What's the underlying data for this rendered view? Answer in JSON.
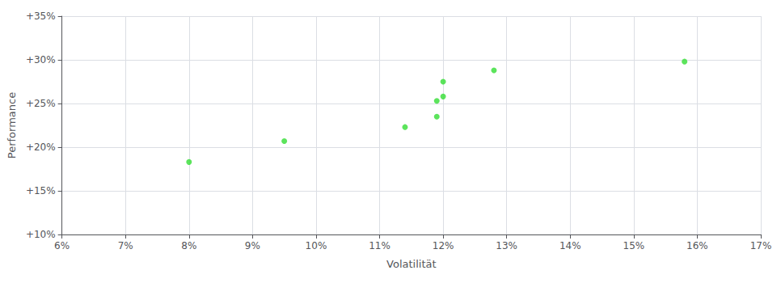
{
  "chart_data": {
    "type": "scatter",
    "xlabel": "Volatilität",
    "ylabel": "Performance",
    "x": [
      0.08,
      0.095,
      0.114,
      0.119,
      0.119,
      0.12,
      0.12,
      0.128,
      0.158
    ],
    "values": [
      0.183,
      0.207,
      0.223,
      0.235,
      0.253,
      0.258,
      0.275,
      0.288,
      0.298
    ],
    "color": "#33dd33",
    "xlim": [
      0.06,
      0.17
    ],
    "xticks": [
      {
        "value": 0.06,
        "label": "6%"
      },
      {
        "value": 0.07,
        "label": "7%"
      },
      {
        "value": 0.08,
        "label": "8%"
      },
      {
        "value": 0.09,
        "label": "9%"
      },
      {
        "value": 0.1,
        "label": "10%"
      },
      {
        "value": 0.11,
        "label": "11%"
      },
      {
        "value": 0.12,
        "label": "12%"
      },
      {
        "value": 0.13,
        "label": "13%"
      },
      {
        "value": 0.14,
        "label": "14%"
      },
      {
        "value": 0.15,
        "label": "15%"
      },
      {
        "value": 0.16,
        "label": "16%"
      },
      {
        "value": 0.17,
        "label": "17%"
      }
    ],
    "ylim": [
      0.1,
      0.35
    ],
    "yticks": [
      {
        "value": 0.1,
        "label": "+10%"
      },
      {
        "value": 0.15,
        "label": "+15%"
      },
      {
        "value": 0.2,
        "label": "+20%"
      },
      {
        "value": 0.25,
        "label": "+25%"
      },
      {
        "value": 0.3,
        "label": "+30%"
      },
      {
        "value": 0.35,
        "label": "+35%"
      }
    ],
    "grid": true
  }
}
